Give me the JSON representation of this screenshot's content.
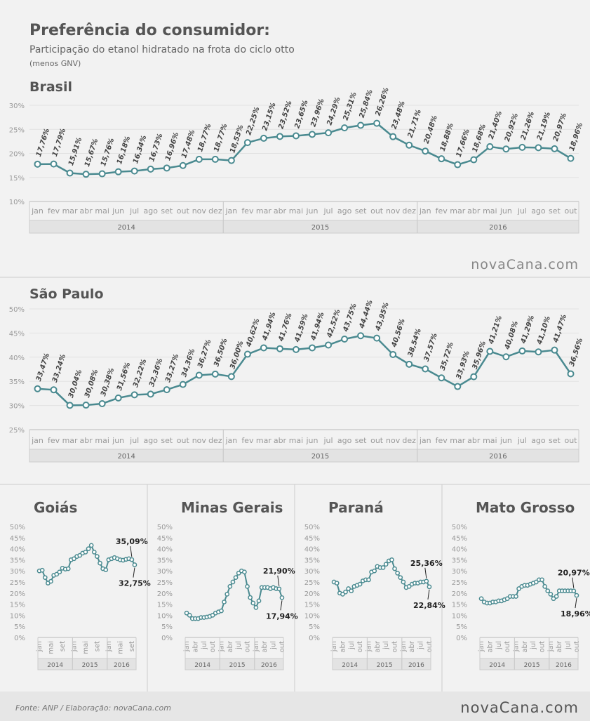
{
  "header": {
    "title": "Preferência do consumidor:",
    "subtitle": "Participação do etanol hidratado na frota do ciclo otto",
    "note": "(menos GNV)"
  },
  "brand": "novaCana.com",
  "source": "Fonte: ANP / Elaboração: novaCana.com",
  "chart_data": [
    {
      "type": "line",
      "title": "Brasil",
      "color": "#4a8a90",
      "grid": true,
      "years": [
        {
          "label": "2014",
          "months": [
            "jan",
            "fev",
            "mar",
            "abr",
            "mai",
            "jun",
            "jul",
            "ago",
            "set",
            "out",
            "nov",
            "dez"
          ]
        },
        {
          "label": "2015",
          "months": [
            "jan",
            "fev",
            "mar",
            "abr",
            "mai",
            "jun",
            "jul",
            "ago",
            "set",
            "out",
            "nov",
            "dez"
          ]
        },
        {
          "label": "2016",
          "months": [
            "jan",
            "fev",
            "mar",
            "abr",
            "mai",
            "jun",
            "jul",
            "ago",
            "set",
            "out"
          ]
        }
      ],
      "values": [
        17.76,
        17.79,
        15.91,
        15.67,
        15.76,
        16.18,
        16.34,
        16.73,
        16.96,
        17.48,
        18.77,
        18.77,
        18.53,
        22.25,
        23.15,
        23.52,
        23.65,
        23.96,
        24.29,
        25.31,
        25.84,
        26.26,
        23.48,
        21.71,
        20.48,
        18.88,
        17.66,
        18.68,
        21.4,
        20.92,
        21.26,
        21.19,
        20.97,
        18.96
      ],
      "value_labels": [
        "17,76%",
        "17,79%",
        "15,91%",
        "15,67%",
        "15,76%",
        "16,18%",
        "16,34%",
        "16,73%",
        "16,96%",
        "17,48%",
        "18,77%",
        "18,77%",
        "18,53%",
        "22,25%",
        "23,15%",
        "23,52%",
        "23,65%",
        "23,96%",
        "24,29%",
        "25,31%",
        "25,84%",
        "26,26%",
        "23,48%",
        "21,71%",
        "20,48%",
        "18,88%",
        "17,66%",
        "18,68%",
        "21,40%",
        "20,92%",
        "21,26%",
        "21,19%",
        "20,97%",
        "18,96%"
      ],
      "ylim": [
        10,
        30
      ],
      "yticks": [
        {
          "value": 10,
          "label": "10%"
        },
        {
          "value": 15,
          "label": "15%"
        },
        {
          "value": 20,
          "label": "20%"
        },
        {
          "value": 25,
          "label": "25%"
        },
        {
          "value": 30,
          "label": "30%"
        }
      ]
    },
    {
      "type": "line",
      "title": "São Paulo",
      "color": "#4a8a90",
      "grid": true,
      "years": [
        {
          "label": "2014",
          "months": [
            "jan",
            "fev",
            "mar",
            "abr",
            "mai",
            "jun",
            "jul",
            "ago",
            "set",
            "out",
            "nov",
            "dez"
          ]
        },
        {
          "label": "2015",
          "months": [
            "jan",
            "fev",
            "mar",
            "abr",
            "mai",
            "jun",
            "jul",
            "ago",
            "set",
            "out",
            "nov",
            "dez"
          ]
        },
        {
          "label": "2016",
          "months": [
            "jan",
            "fev",
            "mar",
            "abr",
            "mai",
            "jun",
            "jul",
            "ago",
            "set",
            "out"
          ]
        }
      ],
      "values": [
        33.47,
        33.24,
        30.04,
        30.08,
        30.38,
        31.56,
        32.22,
        32.36,
        33.27,
        34.36,
        36.27,
        36.5,
        36.0,
        40.62,
        41.94,
        41.76,
        41.59,
        41.94,
        42.52,
        43.75,
        44.44,
        43.95,
        40.56,
        38.54,
        37.57,
        35.72,
        33.93,
        35.96,
        41.21,
        40.08,
        41.29,
        41.1,
        41.47,
        36.56
      ],
      "value_labels": [
        "33,47%",
        "33,24%",
        "30,04%",
        "30,08%",
        "30,38%",
        "31,56%",
        "32,22%",
        "32,36%",
        "33,27%",
        "34,36%",
        "36,27%",
        "36,50%",
        "36,00%",
        "40,62%",
        "41,94%",
        "41,76%",
        "41,59%",
        "41,94%",
        "42,52%",
        "43,75%",
        "44,44%",
        "43,95%",
        "40,56%",
        "38,54%",
        "37,57%",
        "35,72%",
        "33,93%",
        "35,96%",
        "41,21%",
        "40,08%",
        "41,29%",
        "41,10%",
        "41,47%",
        "36,56%"
      ],
      "ylim": [
        25,
        50
      ],
      "yticks": [
        {
          "value": 25,
          "label": "25%"
        },
        {
          "value": 30,
          "label": "30%"
        },
        {
          "value": 35,
          "label": "35%"
        },
        {
          "value": 40,
          "label": "40%"
        },
        {
          "value": 45,
          "label": "45%"
        },
        {
          "value": 50,
          "label": "50%"
        }
      ]
    },
    {
      "type": "line",
      "title": "Goiás",
      "color": "#4a8a90",
      "grid": false,
      "years": [
        {
          "label": "2014",
          "months": [
            "jan",
            null,
            null,
            null,
            "mai",
            null,
            null,
            null,
            "set",
            null,
            null,
            null
          ]
        },
        {
          "label": "2015",
          "months": [
            "jan",
            null,
            null,
            null,
            "mai",
            null,
            null,
            null,
            "set",
            null,
            null,
            null
          ]
        },
        {
          "label": "2016",
          "months": [
            "jan",
            null,
            null,
            null,
            "mai",
            null,
            null,
            null,
            "set",
            null
          ]
        }
      ],
      "values": [
        30,
        30.3,
        27,
        24.5,
        25.3,
        28,
        28.5,
        29.5,
        31.2,
        30.8,
        31,
        35,
        35.5,
        36.5,
        37,
        38,
        38.5,
        40,
        41.5,
        38.5,
        36.5,
        33.5,
        31,
        30.5,
        35,
        35.5,
        36,
        35.5,
        35,
        34.8,
        35.2,
        35.5,
        35.09,
        32.75
      ],
      "value_labels": [
        null,
        null,
        null,
        null,
        null,
        null,
        null,
        null,
        null,
        null,
        null,
        null,
        null,
        null,
        null,
        null,
        null,
        null,
        null,
        null,
        null,
        null,
        null,
        null,
        null,
        null,
        null,
        null,
        null,
        null,
        null,
        null,
        "35,09%",
        "32,75%"
      ],
      "ylim": [
        0,
        50
      ],
      "yticks": [
        {
          "value": 0,
          "label": "0%"
        },
        {
          "value": 5,
          "label": "5%"
        },
        {
          "value": 10,
          "label": "10%"
        },
        {
          "value": 15,
          "label": "15%"
        },
        {
          "value": 20,
          "label": "20%"
        },
        {
          "value": 25,
          "label": "25%"
        },
        {
          "value": 30,
          "label": "30%"
        },
        {
          "value": 35,
          "label": "35%"
        },
        {
          "value": 40,
          "label": "40%"
        },
        {
          "value": 45,
          "label": "45%"
        },
        {
          "value": 50,
          "label": "50%"
        }
      ]
    },
    {
      "type": "line",
      "title": "Minas Gerais",
      "color": "#4a8a90",
      "grid": false,
      "years": [
        {
          "label": "2014",
          "months": [
            "jan",
            null,
            null,
            "abr",
            null,
            null,
            "jul",
            null,
            null,
            "out",
            null,
            null
          ]
        },
        {
          "label": "2015",
          "months": [
            "jan",
            null,
            null,
            "abr",
            null,
            null,
            "jul",
            null,
            null,
            "out",
            null,
            null
          ]
        },
        {
          "label": "2016",
          "months": [
            "jan",
            null,
            null,
            "abr",
            null,
            null,
            "jul",
            null,
            null,
            "out"
          ]
        }
      ],
      "values": [
        11,
        10,
        8.5,
        8.5,
        8.5,
        9,
        9,
        9.2,
        9.5,
        10,
        11,
        11.5,
        12,
        16,
        19.5,
        23,
        25,
        27,
        29,
        30,
        29.5,
        23,
        18,
        15.5,
        13.5,
        16.5,
        22.5,
        22.5,
        22.5,
        22,
        22.5,
        22,
        21.9,
        17.94
      ],
      "value_labels": [
        null,
        null,
        null,
        null,
        null,
        null,
        null,
        null,
        null,
        null,
        null,
        null,
        null,
        null,
        null,
        null,
        null,
        null,
        null,
        null,
        null,
        null,
        null,
        null,
        null,
        null,
        null,
        null,
        null,
        null,
        null,
        null,
        "21,90%",
        "17,94%"
      ],
      "ylim": [
        0,
        50
      ],
      "yticks": [
        {
          "value": 0,
          "label": "0%"
        },
        {
          "value": 5,
          "label": "5%"
        },
        {
          "value": 10,
          "label": "10%"
        },
        {
          "value": 15,
          "label": "15%"
        },
        {
          "value": 20,
          "label": "20%"
        },
        {
          "value": 25,
          "label": "25%"
        },
        {
          "value": 30,
          "label": "30%"
        },
        {
          "value": 35,
          "label": "35%"
        },
        {
          "value": 40,
          "label": "40%"
        },
        {
          "value": 45,
          "label": "45%"
        },
        {
          "value": 50,
          "label": "50%"
        }
      ]
    },
    {
      "type": "line",
      "title": "Paraná",
      "color": "#4a8a90",
      "grid": false,
      "years": [
        {
          "label": "2014",
          "months": [
            "jan",
            null,
            null,
            "abr",
            null,
            null,
            "jul",
            null,
            null,
            "out",
            null,
            null
          ]
        },
        {
          "label": "2015",
          "months": [
            "jan",
            null,
            null,
            "abr",
            null,
            null,
            "jul",
            null,
            null,
            "out",
            null,
            null
          ]
        },
        {
          "label": "2016",
          "months": [
            "jan",
            null,
            null,
            "abr",
            null,
            null,
            "jul",
            null,
            null,
            "out"
          ]
        }
      ],
      "values": [
        25,
        24.5,
        20,
        19.5,
        20.5,
        22,
        21,
        23,
        23.5,
        24,
        25.5,
        26,
        26,
        29.5,
        30,
        32,
        31.5,
        31.5,
        33,
        34.5,
        35,
        31,
        29,
        27,
        25,
        22.5,
        23,
        24,
        24.5,
        24.5,
        25,
        25,
        25.36,
        22.84
      ],
      "value_labels": [
        null,
        null,
        null,
        null,
        null,
        null,
        null,
        null,
        null,
        null,
        null,
        null,
        null,
        null,
        null,
        null,
        null,
        null,
        null,
        null,
        null,
        null,
        null,
        null,
        null,
        null,
        null,
        null,
        null,
        null,
        null,
        null,
        "25,36%",
        "22,84%"
      ],
      "ylim": [
        0,
        50
      ],
      "yticks": [
        {
          "value": 0,
          "label": "0%"
        },
        {
          "value": 5,
          "label": "5%"
        },
        {
          "value": 10,
          "label": "10%"
        },
        {
          "value": 15,
          "label": "15%"
        },
        {
          "value": 20,
          "label": "20%"
        },
        {
          "value": 25,
          "label": "25%"
        },
        {
          "value": 30,
          "label": "30%"
        },
        {
          "value": 35,
          "label": "35%"
        },
        {
          "value": 40,
          "label": "40%"
        },
        {
          "value": 45,
          "label": "45%"
        },
        {
          "value": 50,
          "label": "50%"
        }
      ]
    },
    {
      "type": "line",
      "title": "Mato Grosso",
      "color": "#4a8a90",
      "grid": false,
      "years": [
        {
          "label": "2014",
          "months": [
            "jan",
            null,
            null,
            "abr",
            null,
            null,
            "jul",
            null,
            null,
            "out",
            null,
            null
          ]
        },
        {
          "label": "2015",
          "months": [
            "jan",
            null,
            null,
            "abr",
            null,
            null,
            "jul",
            null,
            null,
            "out",
            null,
            null
          ]
        },
        {
          "label": "2016",
          "months": [
            "jan",
            null,
            null,
            "abr",
            null,
            null,
            "jul",
            null,
            null,
            "out"
          ]
        }
      ],
      "values": [
        17.5,
        16,
        15.5,
        15.5,
        16,
        16,
        16.5,
        16.5,
        17,
        17.5,
        18.5,
        18.5,
        18.5,
        22,
        23,
        23.5,
        23.5,
        24,
        24.5,
        25,
        26,
        26,
        23,
        21,
        19.5,
        17.5,
        18.5,
        21,
        21,
        21,
        21,
        21,
        20.97,
        18.96
      ],
      "value_labels": [
        null,
        null,
        null,
        null,
        null,
        null,
        null,
        null,
        null,
        null,
        null,
        null,
        null,
        null,
        null,
        null,
        null,
        null,
        null,
        null,
        null,
        null,
        null,
        null,
        null,
        null,
        null,
        null,
        null,
        null,
        null,
        null,
        "20,97%",
        "18,96%"
      ],
      "ylim": [
        0,
        50
      ],
      "yticks": [
        {
          "value": 0,
          "label": "0%"
        },
        {
          "value": 5,
          "label": "5%"
        },
        {
          "value": 10,
          "label": "10%"
        },
        {
          "value": 15,
          "label": "15%"
        },
        {
          "value": 20,
          "label": "20%"
        },
        {
          "value": 25,
          "label": "25%"
        },
        {
          "value": 30,
          "label": "30%"
        },
        {
          "value": 35,
          "label": "35%"
        },
        {
          "value": 40,
          "label": "40%"
        },
        {
          "value": 45,
          "label": "45%"
        },
        {
          "value": 50,
          "label": "50%"
        }
      ]
    }
  ]
}
